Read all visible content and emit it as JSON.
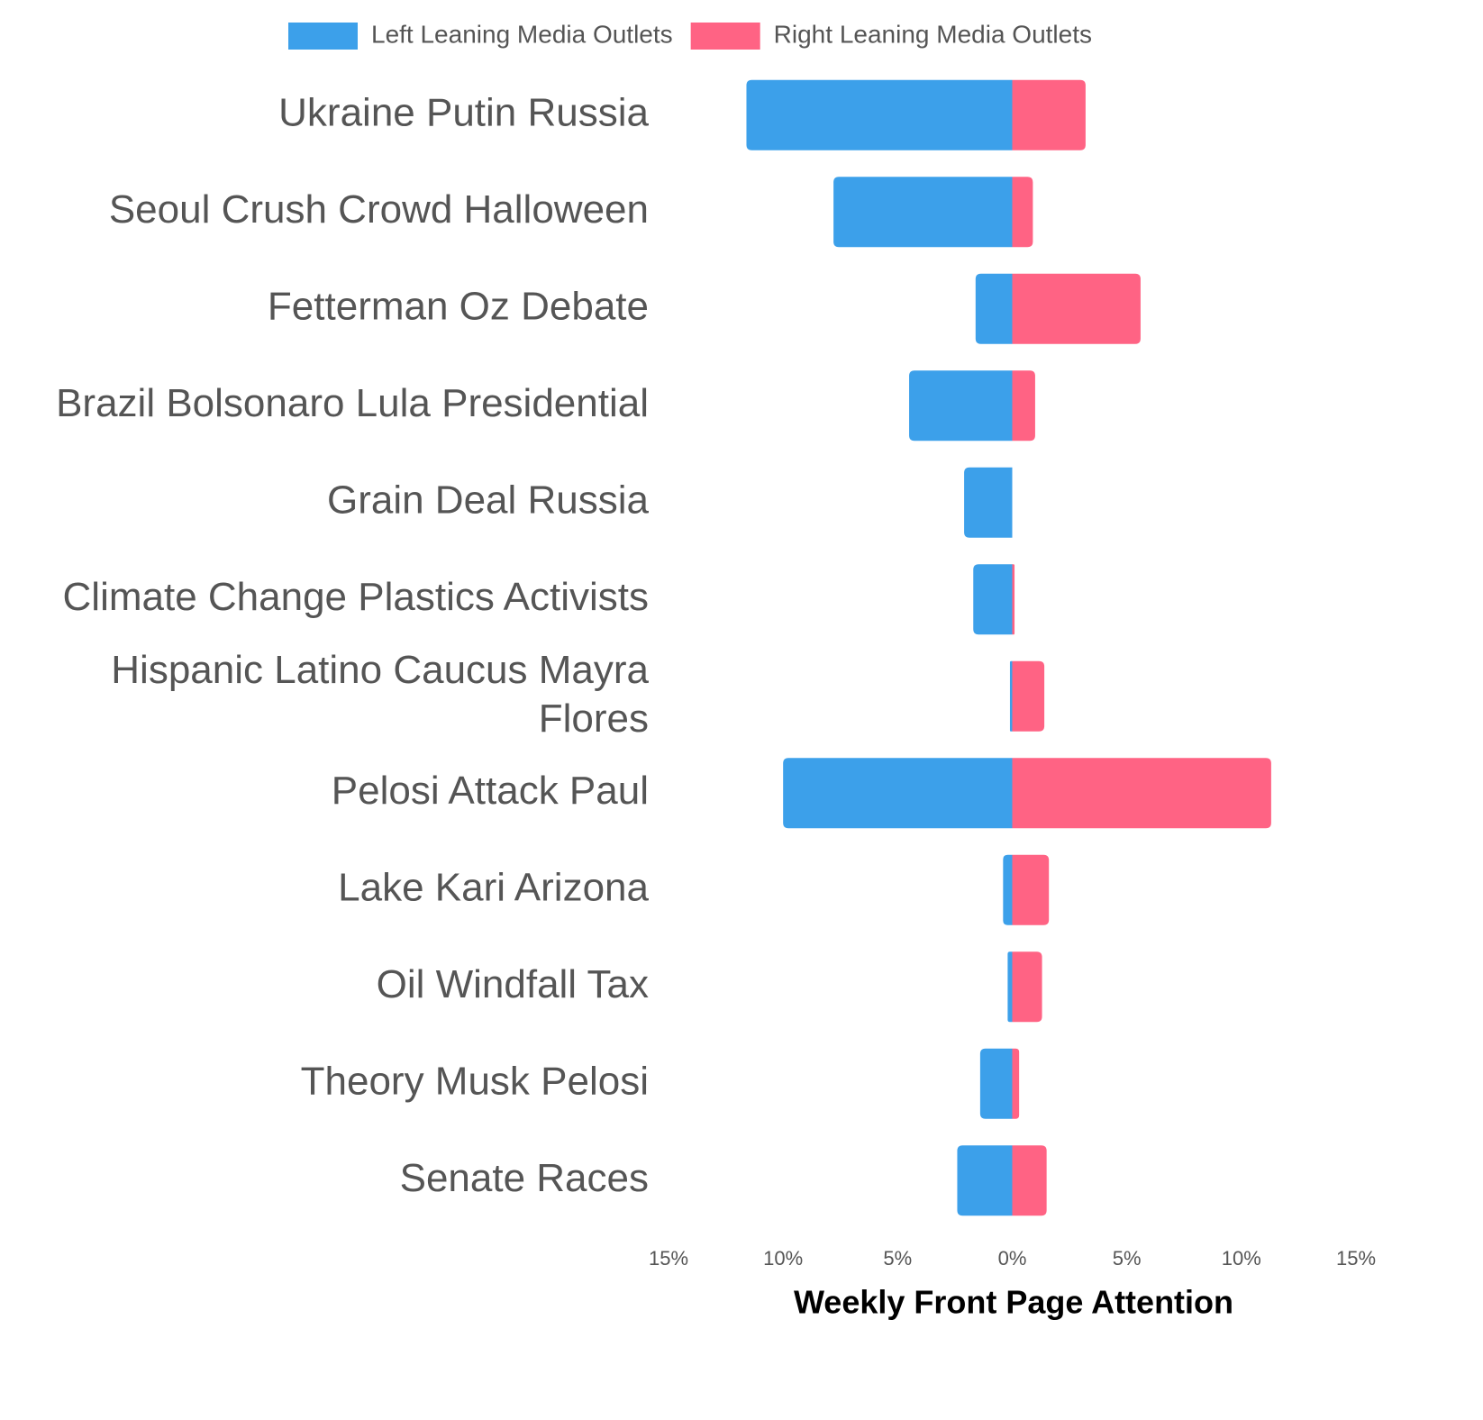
{
  "chart_data": {
    "type": "diverging_bar",
    "categories": [
      "Ukraine Putin Russia",
      "Seoul Crush Crowd Halloween",
      "Fetterman Oz Debate",
      "Brazil Bolsonaro Lula Presidential",
      "Grain Deal Russia",
      "Climate Change Plastics Activists",
      "Hispanic Latino Caucus Mayra Flores",
      "Pelosi Attack Paul",
      "Lake Kari Arizona",
      "Oil Windfall Tax",
      "Theory Musk Pelosi",
      "Senate Races"
    ],
    "series": [
      {
        "name": "Left Leaning Media Outlets",
        "color": "#3ca0ea",
        "values": [
          -11.6,
          -7.8,
          -1.6,
          -4.5,
          -2.1,
          -1.7,
          -0.1,
          -10.0,
          -0.4,
          -0.2,
          -1.4,
          -2.4
        ]
      },
      {
        "name": "Right Leaning Media Outlets",
        "color": "#ff6384",
        "values": [
          3.2,
          0.9,
          5.6,
          1.0,
          0,
          0.1,
          1.4,
          11.3,
          1.6,
          1.3,
          0.3,
          1.5
        ]
      }
    ],
    "xlabel": "Weekly Front Page Attention",
    "xlim": [
      -15,
      15
    ],
    "xticks": [
      {
        "value": -15,
        "label": "15%"
      },
      {
        "value": -10,
        "label": "10%"
      },
      {
        "value": -5,
        "label": "5%"
      },
      {
        "value": 0,
        "label": "0%"
      },
      {
        "value": 5,
        "label": "5%"
      },
      {
        "value": 10,
        "label": "10%"
      },
      {
        "value": 15,
        "label": "15%"
      }
    ],
    "legend": "top",
    "grid": false
  }
}
